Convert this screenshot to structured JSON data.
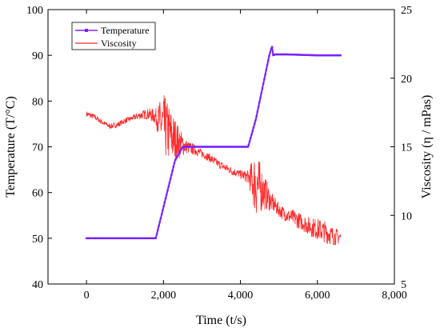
{
  "chart_data": {
    "type": "line",
    "xlabel": "Time (t/s)",
    "ylabel_left": "Temperature (T/°C)",
    "ylabel_right": "Viscosity (η / mPas)",
    "xlim": [
      -1000,
      8000
    ],
    "ylim_left": [
      40,
      100
    ],
    "ylim_right": [
      5,
      25
    ],
    "x_ticks": [
      0,
      2000,
      4000,
      6000,
      8000
    ],
    "x_tick_labels": [
      "0",
      "2,000",
      "4,000",
      "6,000",
      "8,000"
    ],
    "y_left_ticks": [
      40,
      50,
      60,
      70,
      80,
      90,
      100
    ],
    "y_left_tick_labels": [
      "40",
      "50",
      "60",
      "70",
      "80",
      "90",
      "100"
    ],
    "y_right_ticks": [
      5,
      10,
      15,
      20,
      25
    ],
    "y_right_tick_labels": [
      "5",
      "10",
      "15",
      "20",
      "25"
    ],
    "legend_position": "top-left",
    "grid": false,
    "series": [
      {
        "name": "Temperature",
        "axis": "left",
        "color": "#7b22ff",
        "marker": "square",
        "x": [
          0,
          1800,
          2300,
          2500,
          3000,
          3500,
          4000,
          4200,
          4400,
          4600,
          4750,
          4820,
          4850,
          4900,
          5200,
          6000,
          6600
        ],
        "y": [
          50,
          50,
          67,
          70,
          70,
          70,
          70,
          70,
          76,
          84,
          90,
          92,
          90,
          90.2,
          90.2,
          90,
          90
        ]
      },
      {
        "name": "Viscosity",
        "axis": "right",
        "color": "#ff2a2a",
        "x": [
          0,
          200,
          400,
          600,
          800,
          1000,
          1200,
          1400,
          1600,
          1800,
          2000,
          2200,
          2400,
          2600,
          2800,
          3000,
          3200,
          3400,
          3600,
          3800,
          4000,
          4200,
          4400,
          4600,
          4800,
          5000,
          5200,
          5400,
          5600,
          5800,
          6000,
          6200,
          6400,
          6600
        ],
        "y": [
          17.4,
          17.2,
          16.8,
          16.5,
          16.6,
          16.9,
          17.1,
          17.3,
          17.4,
          17.2,
          16.5,
          15.8,
          15.3,
          15.0,
          14.8,
          14.5,
          14.2,
          13.8,
          13.5,
          13.2,
          13.0,
          12.8,
          12.3,
          11.8,
          11.0,
          10.4,
          10.0,
          9.8,
          9.5,
          9.2,
          9.0,
          8.8,
          8.5,
          8.4
        ],
        "noise": [
          0.2,
          0.2,
          0.2,
          0.2,
          0.2,
          0.2,
          0.2,
          0.3,
          0.4,
          0.6,
          2.4,
          2.0,
          1.2,
          0.5,
          0.4,
          0.3,
          0.3,
          0.3,
          0.3,
          0.3,
          0.3,
          0.5,
          2.5,
          1.4,
          0.7,
          0.5,
          0.5,
          0.6,
          0.6,
          0.7,
          0.8,
          0.8,
          0.7,
          0.5
        ]
      }
    ]
  }
}
